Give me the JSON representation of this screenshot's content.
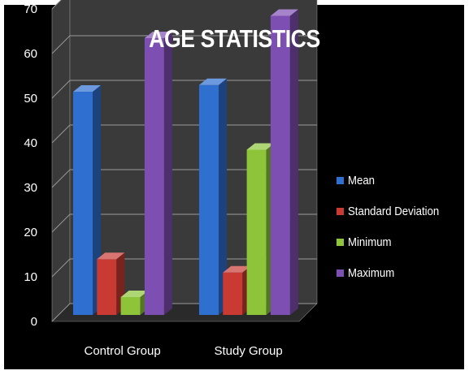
{
  "chart_data": {
    "type": "bar",
    "title": "AGE STATISTICS",
    "categories": [
      "Control Group",
      "Study Group"
    ],
    "series": [
      {
        "name": "Mean",
        "color": "#2F6FD0",
        "values": [
          50,
          51.5
        ]
      },
      {
        "name": "Standard Deviation",
        "color": "#C83A32",
        "values": [
          12.5,
          9.5
        ]
      },
      {
        "name": "Minimum",
        "color": "#8DC43A",
        "values": [
          4,
          37
        ]
      },
      {
        "name": "Maximum",
        "color": "#7E4FB3",
        "values": [
          62,
          67
        ]
      }
    ],
    "yticks": [
      "0",
      "10",
      "20",
      "30",
      "40",
      "50",
      "60",
      "70"
    ],
    "ylim": [
      0,
      70
    ],
    "grid": true,
    "legend": "right",
    "background": "#000000",
    "walls": "#3a3a3a"
  }
}
